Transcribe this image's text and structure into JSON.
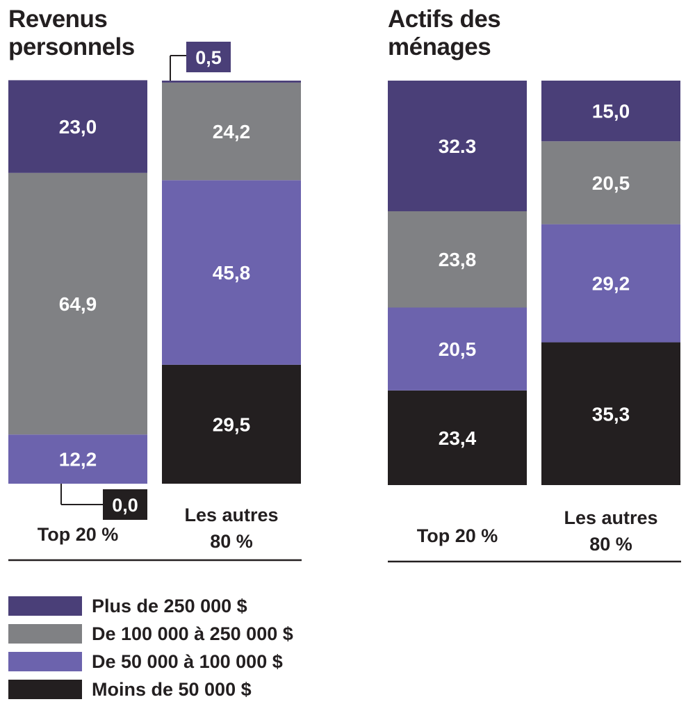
{
  "colors": {
    "over_250k": "#4a3f78",
    "100k_250k": "#808184",
    "50k_100k": "#6c63ad",
    "under_50k": "#231f20",
    "axis": "#231f20"
  },
  "chart_data": [
    {
      "type": "bar",
      "stacked": true,
      "title_lines": [
        "Revenus",
        "personnels"
      ],
      "categories": [
        [
          "Top 20 %"
        ],
        [
          "Les autres",
          "80 %"
        ]
      ],
      "series": [
        {
          "name": "Moins de 50 000 $",
          "key": "under_50k",
          "values": [
            0.0,
            29.5
          ],
          "labels": [
            "0,0",
            "29,5"
          ]
        },
        {
          "name": "De 50 000 à 100 000 $",
          "key": "50k_100k",
          "values": [
            12.2,
            45.8
          ],
          "labels": [
            "12,2",
            "45,8"
          ]
        },
        {
          "name": "De 100 000 à 250 000 $",
          "key": "100k_250k",
          "values": [
            64.9,
            24.2
          ],
          "labels": [
            "64,9",
            "24,2"
          ]
        },
        {
          "name": "Plus de 250 000 $",
          "key": "over_250k",
          "values": [
            23.0,
            0.5
          ],
          "labels": [
            "23,0",
            "0,5"
          ]
        }
      ],
      "ylim": [
        0,
        100
      ]
    },
    {
      "type": "bar",
      "stacked": true,
      "title_lines": [
        "Actifs des",
        "ménages"
      ],
      "categories": [
        [
          "Top 20 %"
        ],
        [
          "Les autres",
          "80 %"
        ]
      ],
      "series": [
        {
          "name": "Moins de 50 000 $",
          "key": "under_50k",
          "values": [
            23.4,
            35.3
          ],
          "labels": [
            "23,4",
            "35,3"
          ]
        },
        {
          "name": "De 50 000 à 100 000 $",
          "key": "50k_100k",
          "values": [
            20.5,
            29.2
          ],
          "labels": [
            "20,5",
            "29,2"
          ]
        },
        {
          "name": "De 100 000 à 250 000 $",
          "key": "100k_250k",
          "values": [
            23.8,
            20.5
          ],
          "labels": [
            "23,8",
            "20,5"
          ]
        },
        {
          "name": "Plus de 250 000 $",
          "key": "over_250k",
          "values": [
            32.3,
            15.0
          ],
          "labels": [
            "32.3",
            "15,0"
          ]
        }
      ],
      "ylim": [
        0,
        100
      ]
    }
  ],
  "legend": [
    {
      "label": "Plus de 250 000 $",
      "key": "over_250k"
    },
    {
      "label": "De 100 000 à 250 000 $",
      "key": "100k_250k"
    },
    {
      "label": "De 50 000 à 100 000 $",
      "key": "50k_100k"
    },
    {
      "label": "Moins de 50 000 $",
      "key": "under_50k"
    }
  ]
}
